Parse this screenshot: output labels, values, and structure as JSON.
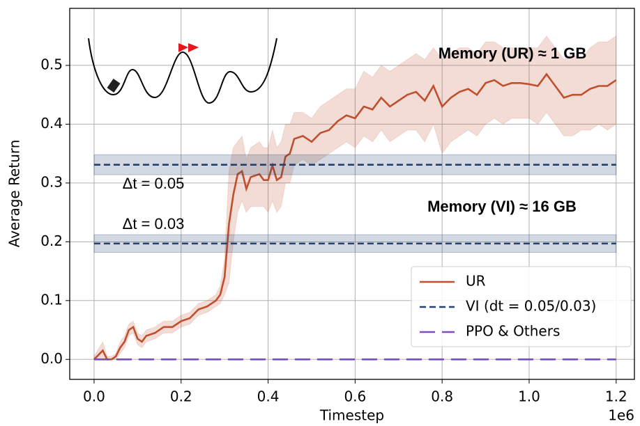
{
  "chart_data": {
    "type": "line",
    "x_label": "Timestep",
    "y_label": "Average Return",
    "x_offset_label": "1e6",
    "xlim": [
      -0.056,
      1.242
    ],
    "ylim": [
      -0.034,
      0.597
    ],
    "xticks": [
      {
        "value": 0,
        "label": "0.0"
      },
      0.2,
      0.4,
      0.6,
      0.8,
      {
        "value": 1,
        "label": "1.0"
      },
      1.2
    ],
    "yticks": [
      {
        "value": 0,
        "label": "0.0"
      },
      0.1,
      0.2,
      0.3,
      0.4,
      0.5
    ],
    "grid": true,
    "legend": "lower right",
    "x": [
      0,
      0.02,
      0.03,
      0.04,
      0.05,
      0.06,
      0.07,
      0.08,
      0.09,
      0.1,
      0.11,
      0.12,
      0.14,
      0.16,
      0.18,
      0.2,
      0.22,
      0.24,
      0.26,
      0.28,
      0.29,
      0.3,
      0.31,
      0.32,
      0.33,
      0.34,
      0.35,
      0.36,
      0.38,
      0.39,
      0.4,
      0.41,
      0.42,
      0.43,
      0.44,
      0.45,
      0.46,
      0.48,
      0.5,
      0.52,
      0.54,
      0.56,
      0.58,
      0.6,
      0.62,
      0.64,
      0.66,
      0.68,
      0.7,
      0.72,
      0.74,
      0.76,
      0.78,
      0.8,
      0.82,
      0.84,
      0.86,
      0.88,
      0.9,
      0.92,
      0.94,
      0.96,
      0.98,
      1,
      1.02,
      1.04,
      1.06,
      1.08,
      1.1,
      1.12,
      1.14,
      1.16,
      1.18,
      1.2
    ],
    "series": [
      {
        "name": "UR",
        "color": "#bf4f2d",
        "style": "line",
        "values": [
          0,
          0.015,
          0,
          0,
          0.005,
          0.02,
          0.03,
          0.05,
          0.055,
          0.035,
          0.03,
          0.04,
          0.045,
          0.055,
          0.055,
          0.065,
          0.07,
          0.085,
          0.09,
          0.1,
          0.11,
          0.14,
          0.23,
          0.28,
          0.315,
          0.32,
          0.29,
          0.31,
          0.315,
          0.305,
          0.305,
          0.33,
          0.305,
          0.31,
          0.345,
          0.35,
          0.375,
          0.38,
          0.37,
          0.385,
          0.39,
          0.405,
          0.415,
          0.41,
          0.43,
          0.425,
          0.445,
          0.43,
          0.44,
          0.45,
          0.455,
          0.44,
          0.465,
          0.43,
          0.445,
          0.455,
          0.46,
          0.45,
          0.47,
          0.475,
          0.465,
          0.47,
          0.47,
          0.468,
          0.465,
          0.485,
          0.465,
          0.445,
          0.45,
          0.45,
          0.46,
          0.465,
          0.465,
          0.475
        ],
        "lower": [
          0,
          0,
          0,
          0,
          0,
          0.01,
          0.02,
          0.04,
          0.045,
          0.025,
          0.02,
          0.03,
          0.035,
          0.045,
          0.045,
          0.055,
          0.06,
          0.075,
          0.08,
          0.09,
          0.095,
          0.11,
          0.13,
          0.2,
          0.25,
          0.27,
          0.25,
          0.26,
          0.26,
          0.26,
          0.25,
          0.27,
          0.25,
          0.26,
          0.3,
          0.3,
          0.33,
          0.34,
          0.33,
          0.34,
          0.35,
          0.36,
          0.37,
          0.36,
          0.38,
          0.37,
          0.39,
          0.37,
          0.38,
          0.39,
          0.39,
          0.37,
          0.4,
          0.35,
          0.37,
          0.38,
          0.39,
          0.38,
          0.4,
          0.41,
          0.4,
          0.41,
          0.41,
          0.41,
          0.4,
          0.42,
          0.4,
          0.38,
          0.38,
          0.39,
          0.39,
          0.4,
          0.39,
          0.4
        ],
        "upper": [
          0.005,
          0.03,
          0.005,
          0.005,
          0.01,
          0.03,
          0.04,
          0.06,
          0.065,
          0.045,
          0.04,
          0.05,
          0.055,
          0.065,
          0.065,
          0.075,
          0.08,
          0.095,
          0.1,
          0.11,
          0.125,
          0.17,
          0.32,
          0.36,
          0.37,
          0.38,
          0.34,
          0.36,
          0.37,
          0.36,
          0.36,
          0.39,
          0.36,
          0.37,
          0.4,
          0.4,
          0.42,
          0.42,
          0.41,
          0.43,
          0.44,
          0.45,
          0.46,
          0.46,
          0.49,
          0.48,
          0.5,
          0.49,
          0.5,
          0.51,
          0.52,
          0.51,
          0.53,
          0.51,
          0.52,
          0.53,
          0.53,
          0.52,
          0.54,
          0.54,
          0.53,
          0.53,
          0.53,
          0.53,
          0.53,
          0.55,
          0.53,
          0.51,
          0.52,
          0.51,
          0.53,
          0.54,
          0.54,
          0.55
        ]
      },
      {
        "name": "VI (dt = 0.05/0.03)",
        "color": "#23406e",
        "style": "hline",
        "levels": [
          0.331,
          0.197
        ],
        "lower": [
          0.314,
          0.182
        ],
        "upper": [
          0.348,
          0.212
        ]
      },
      {
        "name": "PPO & Others",
        "color": "#7b4dbf",
        "style": "hline",
        "levels": [
          0
        ]
      }
    ],
    "annotations": [
      "Memory (UR) ≈ 1 GB",
      "Memory (VI) ≈ 16 GB",
      "Δt = 0.05",
      "Δt = 0.03"
    ]
  }
}
